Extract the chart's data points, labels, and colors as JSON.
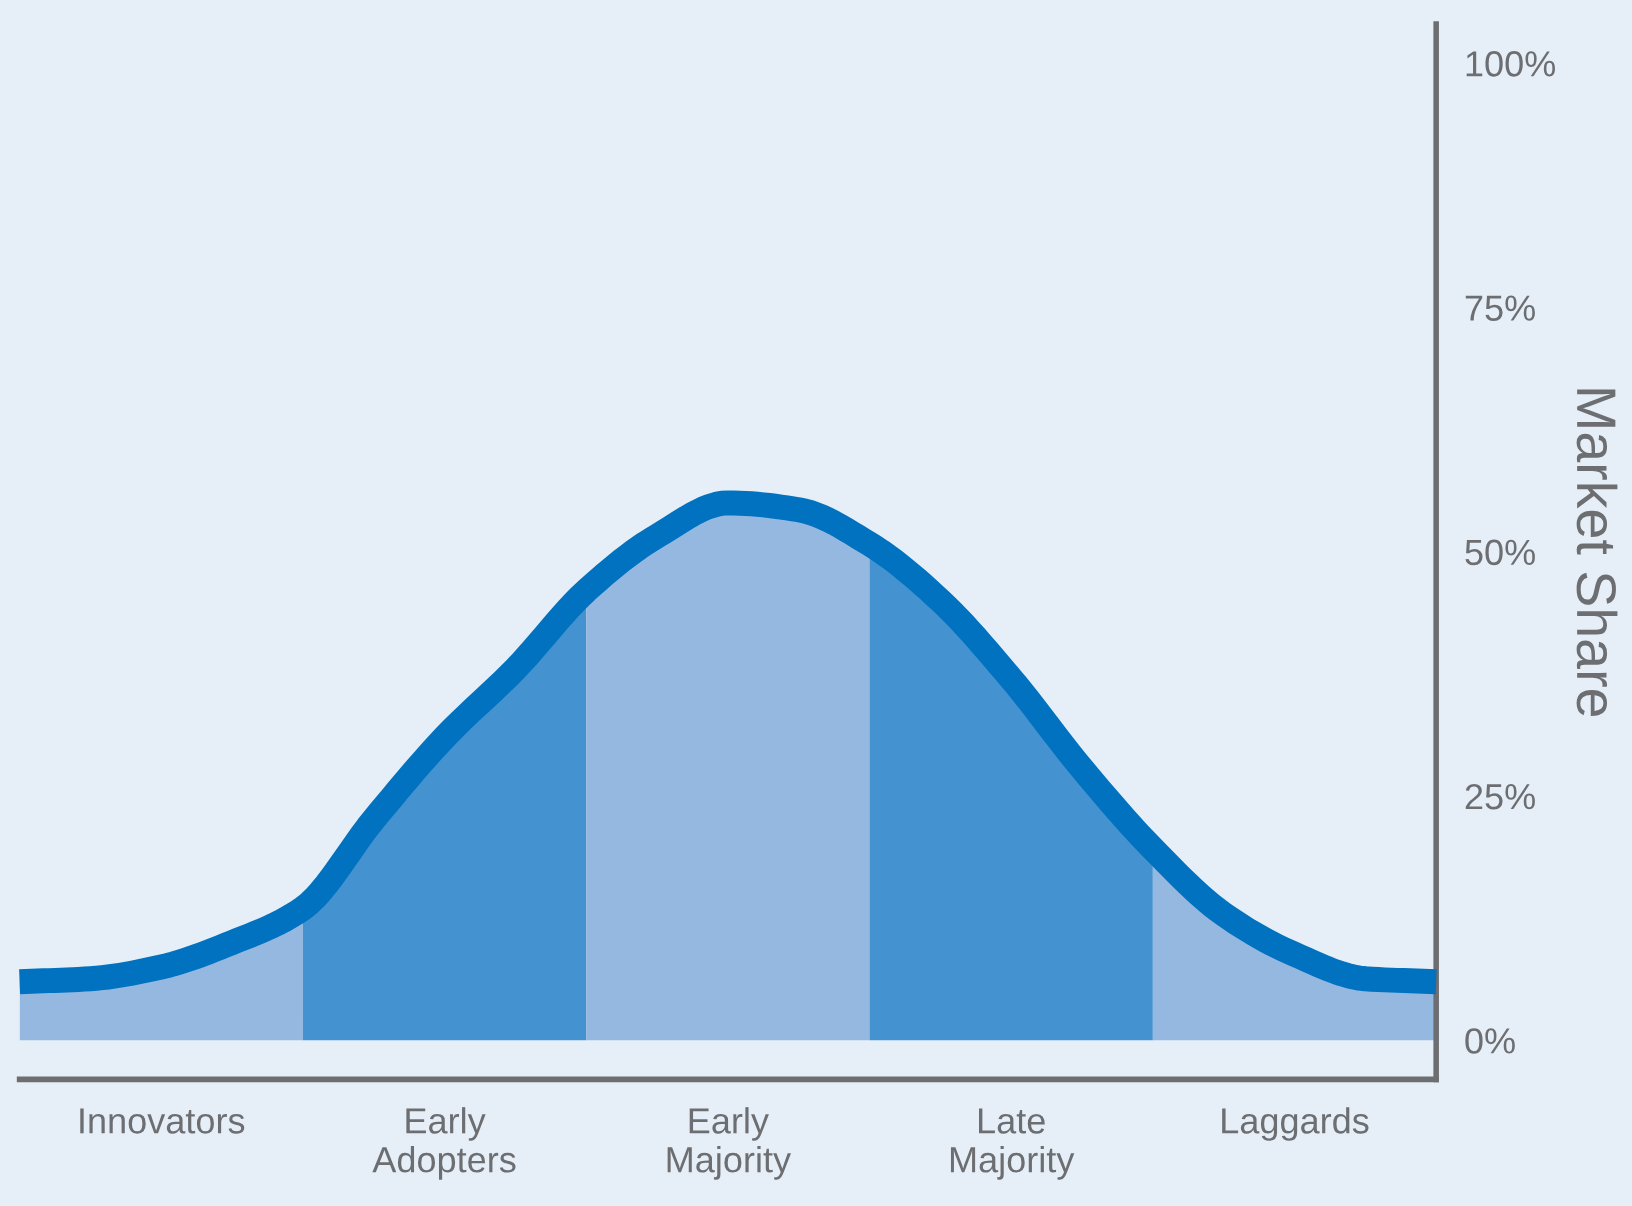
{
  "chart_data": {
    "type": "area",
    "ylabel": "Market Share",
    "ylim": [
      -4,
      104
    ],
    "categories": [
      null,
      null,
      "Innovators",
      null,
      null,
      null,
      "Early\nAdopters",
      null,
      null,
      null,
      "Early\nMajority",
      null,
      null,
      null,
      "Late\nMajority",
      null,
      null,
      null,
      "Laggards",
      null,
      null
    ],
    "yticks": [
      {
        "value": 0,
        "label": "0%"
      },
      {
        "value": 25,
        "label": "25%"
      },
      {
        "value": 50,
        "label": "50%"
      },
      {
        "value": 75,
        "label": "75%"
      },
      {
        "value": 100,
        "label": "100%"
      }
    ],
    "grid": false,
    "legend": false,
    "series": [
      {
        "color": "#95b8e1",
        "values": [
          6,
          6.3,
          7.5,
          10,
          13.5,
          null,
          null,
          null,
          null,
          null,
          null,
          null,
          null,
          null,
          null,
          null,
          null,
          null,
          null,
          null,
          null
        ]
      },
      {
        "color": "#4592d0",
        "values": [
          null,
          null,
          null,
          null,
          13.5,
          22.6,
          31,
          38,
          46,
          null,
          null,
          null,
          null,
          null,
          null,
          null,
          null,
          null,
          null,
          null,
          null
        ]
      },
      {
        "color": "#95b8e1",
        "values": [
          null,
          null,
          null,
          null,
          null,
          null,
          null,
          null,
          46,
          51.6,
          55,
          54.3,
          50.8,
          null,
          null,
          null,
          null,
          null,
          null,
          null,
          null
        ]
      },
      {
        "color": "#4592d0",
        "values": [
          null,
          null,
          null,
          null,
          null,
          null,
          null,
          null,
          null,
          null,
          null,
          null,
          50.8,
          45,
          37,
          27.8,
          19.6,
          null,
          null,
          null,
          null
        ]
      },
      {
        "color": "#95b8e1",
        "values": [
          null,
          null,
          null,
          null,
          null,
          null,
          null,
          null,
          null,
          null,
          null,
          null,
          null,
          null,
          null,
          null,
          19.6,
          12.9,
          8.8,
          6.3,
          6
        ]
      },
      {
        "type": "line",
        "color": "#0072c0",
        "values": [
          6,
          6.3,
          7.5,
          10,
          13.5,
          22.6,
          31,
          38,
          46,
          51.6,
          55,
          54.3,
          50.8,
          45,
          37,
          27.8,
          19.6,
          12.9,
          8.8,
          6.3,
          6
        ]
      }
    ]
  }
}
